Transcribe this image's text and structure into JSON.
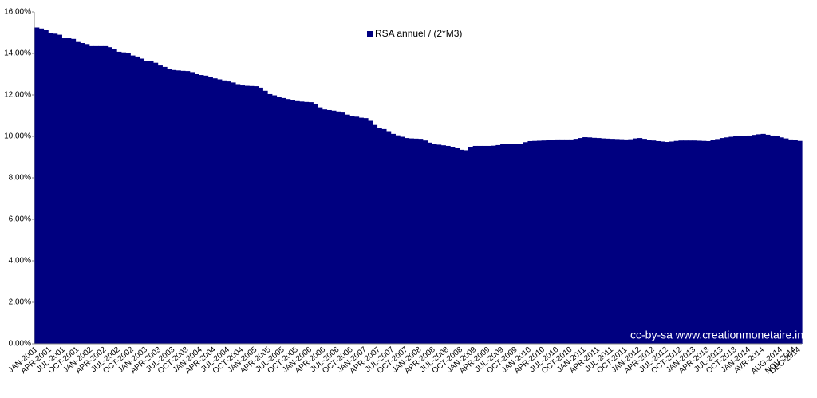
{
  "chart_data": {
    "type": "bar",
    "legend": "top",
    "categories": [
      "JAN-2001",
      null,
      null,
      "APR-2001",
      null,
      null,
      "JUL-2001",
      null,
      null,
      "OCT-2001",
      null,
      null,
      "JAN-2002",
      null,
      null,
      "APR-2002",
      null,
      null,
      "JUL-2002",
      null,
      null,
      "OCT-2002",
      null,
      null,
      "JAN-2003",
      null,
      null,
      "APR-2003",
      null,
      null,
      "JUL-2003",
      null,
      null,
      "OCT-2003",
      null,
      null,
      "JAN-2004",
      null,
      null,
      "APR-2004",
      null,
      null,
      "JUL-2004",
      null,
      null,
      "OCT-2004",
      null,
      null,
      "JAN-2005",
      null,
      null,
      "APR-2005",
      null,
      null,
      "JUL-2005",
      null,
      null,
      "OCT-2005",
      null,
      null,
      "JAN-2006",
      null,
      null,
      "APR-2006",
      null,
      null,
      "JUL-2006",
      null,
      null,
      "OCT-2006",
      null,
      null,
      "JAN-2007",
      null,
      null,
      "APR-2007",
      null,
      null,
      "JUL-2007",
      null,
      null,
      "OCT-2007",
      null,
      null,
      "JAN-2008",
      null,
      null,
      "APR-2008",
      null,
      null,
      "JUL-2008",
      null,
      null,
      "OCT-2008",
      null,
      null,
      "JAN-2009",
      null,
      null,
      "APR-2009",
      null,
      null,
      "JUL-2009",
      null,
      null,
      "OCT-2009",
      null,
      null,
      "JAN-2010",
      null,
      null,
      "APR-2010",
      null,
      null,
      "JUL-2010",
      null,
      null,
      "OCT-2010",
      null,
      null,
      "JAN-2011",
      null,
      null,
      "APR-2011",
      null,
      null,
      "JUL-2011",
      null,
      null,
      "OCT-2011",
      null,
      null,
      "JAN-2012",
      null,
      null,
      "APR-2012",
      null,
      null,
      "JUL-2012",
      null,
      null,
      "OCT-2012",
      null,
      null,
      "JAN-2013",
      null,
      null,
      "APR-2013",
      null,
      null,
      "JUL-2013",
      null,
      null,
      "OCT-2013",
      null,
      null,
      "JAN-2014",
      null,
      null,
      "AVR-2014",
      null,
      null,
      null,
      "AUG-2014",
      null,
      null,
      "NOV-2014",
      "DEC-2014"
    ],
    "series": [
      {
        "name": "RSA annuel / (2*M3)",
        "color": "#000080",
        "values": [
          15.25,
          15.2,
          15.15,
          15.0,
          14.95,
          14.9,
          14.73,
          14.73,
          14.7,
          14.55,
          14.5,
          14.45,
          14.35,
          14.35,
          14.35,
          14.35,
          14.3,
          14.2,
          14.08,
          14.05,
          14.0,
          13.9,
          13.85,
          13.75,
          13.65,
          13.62,
          13.55,
          13.42,
          13.35,
          13.25,
          13.2,
          13.18,
          13.16,
          13.15,
          13.1,
          13.0,
          12.96,
          12.93,
          12.88,
          12.8,
          12.75,
          12.7,
          12.65,
          12.6,
          12.52,
          12.46,
          12.44,
          12.43,
          12.42,
          12.35,
          12.2,
          12.04,
          11.98,
          11.92,
          11.85,
          11.8,
          11.75,
          11.7,
          11.68,
          11.66,
          11.65,
          11.55,
          11.4,
          11.3,
          11.27,
          11.24,
          11.2,
          11.15,
          11.05,
          11.0,
          10.95,
          10.9,
          10.88,
          10.75,
          10.55,
          10.42,
          10.35,
          10.25,
          10.12,
          10.05,
          9.98,
          9.92,
          9.9,
          9.89,
          9.88,
          9.8,
          9.7,
          9.62,
          9.6,
          9.57,
          9.54,
          9.5,
          9.45,
          9.35,
          9.33,
          9.5,
          9.54,
          9.54,
          9.54,
          9.54,
          9.55,
          9.58,
          9.62,
          9.62,
          9.62,
          9.62,
          9.65,
          9.72,
          9.77,
          9.78,
          9.79,
          9.8,
          9.82,
          9.84,
          9.85,
          9.85,
          9.85,
          9.85,
          9.88,
          9.92,
          9.96,
          9.95,
          9.93,
          9.92,
          9.9,
          9.89,
          9.88,
          9.87,
          9.86,
          9.85,
          9.86,
          9.9,
          9.92,
          9.88,
          9.84,
          9.8,
          9.77,
          9.75,
          9.73,
          9.75,
          9.78,
          9.8,
          9.8,
          9.8,
          9.8,
          9.79,
          9.78,
          9.77,
          9.82,
          9.87,
          9.92,
          9.95,
          9.98,
          10.0,
          10.02,
          10.03,
          10.04,
          10.07,
          10.1,
          10.12,
          10.08,
          10.04,
          10.0,
          9.95,
          9.9,
          9.85,
          9.82,
          9.78
        ]
      }
    ],
    "ylim": [
      0,
      16
    ],
    "yticks": [
      {
        "value": 0,
        "label": "0,00%"
      },
      {
        "value": 2,
        "label": "2,00%"
      },
      {
        "value": 4,
        "label": "4,00%"
      },
      {
        "value": 6,
        "label": "6,00%"
      },
      {
        "value": 8,
        "label": "8,00%"
      },
      {
        "value": 10,
        "label": "10,00%"
      },
      {
        "value": 12,
        "label": "12,00%"
      },
      {
        "value": 14,
        "label": "14,00%"
      },
      {
        "value": 16,
        "label": "16,00%"
      }
    ],
    "annotation": "cc-by-sa www.creationmonetaire.info"
  }
}
